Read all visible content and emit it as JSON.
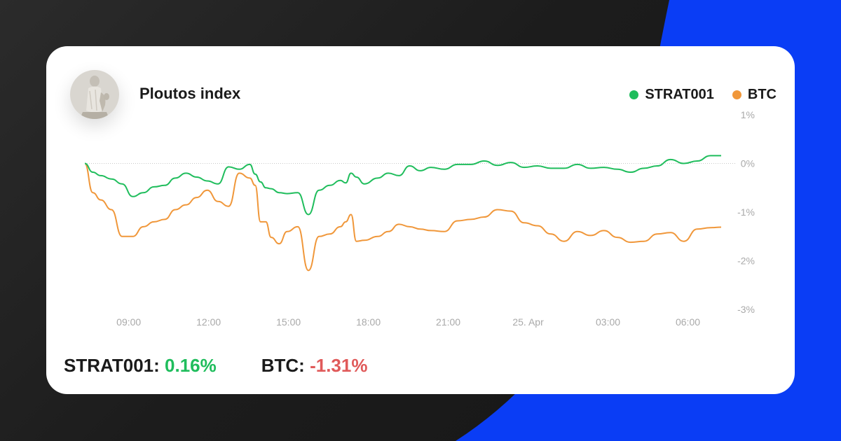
{
  "header": {
    "title": "Ploutos index",
    "avatar_icon": "greek-statue-icon"
  },
  "colors": {
    "strat": "#1fbd5c",
    "btc": "#f0973a",
    "accent_blue": "#0a3df5",
    "negative": "#e05a5a"
  },
  "summary": {
    "strat_label": "STRAT001:",
    "strat_value": "0.16%",
    "btc_label": "BTC:",
    "btc_value": "-1.31%"
  },
  "chart_data": {
    "type": "line",
    "title": "Ploutos index",
    "xlabel": "",
    "ylabel": "",
    "x_ticks": [
      "09:00",
      "12:00",
      "15:00",
      "18:00",
      "21:00",
      "25. Apr",
      "03:00",
      "06:00"
    ],
    "y_ticks": [
      "1%",
      "0%",
      "-1%",
      "-2%",
      "-3%"
    ],
    "ylim": [
      -3,
      1
    ],
    "grid": false,
    "reference_line": 0,
    "legend_position": "top-right",
    "x_hours": [
      0,
      0.3,
      0.6,
      1,
      1.4,
      1.8,
      2.2,
      2.6,
      3,
      3.4,
      3.8,
      4.2,
      4.6,
      5,
      5.4,
      5.8,
      6.2,
      6.4,
      6.6,
      6.8,
      7,
      7.3,
      7.6,
      8,
      8.4,
      8.8,
      9.2,
      9.6,
      9.8,
      10,
      10.2,
      10.5,
      11,
      11.4,
      11.8,
      12.2,
      12.6,
      13,
      13.5,
      14,
      14.5,
      15,
      15.5,
      16,
      16.5,
      17,
      17.5,
      18,
      18.5,
      19,
      19.5,
      20,
      20.5,
      21,
      21.5,
      22,
      22.5,
      23,
      23.5,
      23.9
    ],
    "series": [
      {
        "name": "STRAT001",
        "values": [
          0,
          -0.18,
          -0.25,
          -0.32,
          -0.42,
          -0.68,
          -0.6,
          -0.48,
          -0.45,
          -0.3,
          -0.2,
          -0.28,
          -0.36,
          -0.42,
          -0.07,
          -0.12,
          -0.02,
          -0.22,
          -0.38,
          -0.5,
          -0.52,
          -0.6,
          -0.62,
          -0.6,
          -1.05,
          -0.55,
          -0.45,
          -0.35,
          -0.4,
          -0.2,
          -0.28,
          -0.42,
          -0.3,
          -0.2,
          -0.25,
          -0.05,
          -0.15,
          -0.08,
          -0.12,
          -0.02,
          -0.02,
          0.05,
          -0.04,
          0.02,
          -0.08,
          -0.05,
          -0.1,
          -0.1,
          -0.02,
          -0.1,
          -0.08,
          -0.12,
          -0.18,
          -0.1,
          -0.05,
          0.08,
          0,
          0.05,
          0.16,
          0.16
        ]
      },
      {
        "name": "BTC",
        "values": [
          0,
          -0.6,
          -0.75,
          -0.95,
          -1.5,
          -1.5,
          -1.3,
          -1.2,
          -1.15,
          -0.95,
          -0.85,
          -0.7,
          -0.55,
          -0.78,
          -0.88,
          -0.2,
          -0.3,
          -0.45,
          -1.2,
          -1.2,
          -1.52,
          -1.65,
          -1.4,
          -1.3,
          -2.2,
          -1.5,
          -1.45,
          -1.3,
          -1.2,
          -1.05,
          -1.6,
          -1.58,
          -1.5,
          -1.4,
          -1.25,
          -1.3,
          -1.35,
          -1.38,
          -1.4,
          -1.18,
          -1.15,
          -1.1,
          -0.95,
          -0.98,
          -1.22,
          -1.28,
          -1.45,
          -1.6,
          -1.4,
          -1.48,
          -1.38,
          -1.52,
          -1.62,
          -1.6,
          -1.45,
          -1.42,
          -1.6,
          -1.35,
          -1.32,
          -1.31
        ]
      }
    ]
  }
}
